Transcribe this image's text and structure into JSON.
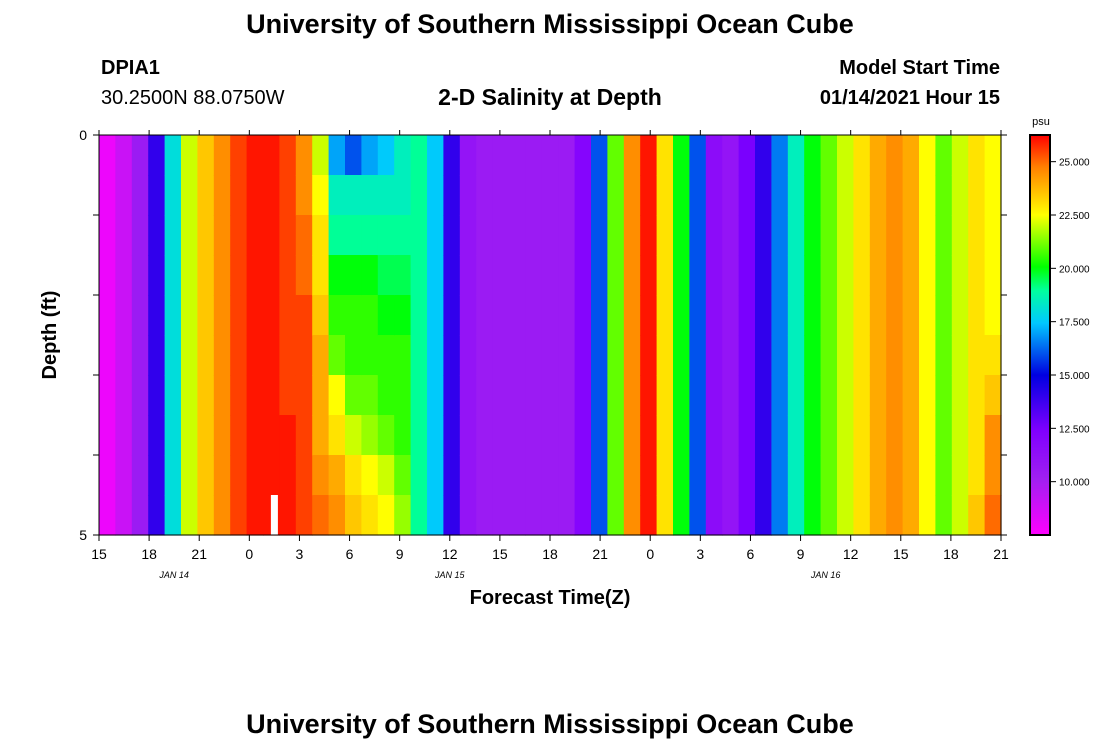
{
  "header": {
    "top_title": "University of Southern Mississippi Ocean Cube",
    "station_id": "DPIA1",
    "coordinates": "30.2500N 88.0750W",
    "plot_title": "2-D Salinity at Depth",
    "model_start_label": "Model Start Time",
    "model_start_value": "01/14/2021 Hour 15",
    "bottom_title": "University of Southern Mississippi Ocean Cube"
  },
  "chart_data": {
    "type": "heatmap",
    "title": "2-D Salinity at Depth",
    "xlabel": "Forecast Time(Z)",
    "ylabel": "Depth (ft)",
    "units": "psu",
    "x_hours_since_start": [
      0,
      54
    ],
    "ylim": [
      0,
      5
    ],
    "y_ticks": [
      "0",
      "5"
    ],
    "x_tick_labels": [
      "15",
      "18",
      "21",
      "0",
      "3",
      "6",
      "9",
      "12",
      "15",
      "18",
      "21",
      "0",
      "3",
      "6",
      "9",
      "12",
      "15",
      "18",
      "21"
    ],
    "date_labels": [
      {
        "text": "JAN 14",
        "hour": 4.5
      },
      {
        "text": "JAN 15",
        "hour": 21
      },
      {
        "text": "JAN 16",
        "hour": 43.5
      }
    ],
    "colorbar": {
      "min": 7.5,
      "max": 26.25,
      "tick_values": [
        10,
        12.5,
        15,
        17.5,
        20,
        22.5,
        25
      ],
      "tick_labels": [
        "10.000",
        "12.500",
        "15.000",
        "17.500",
        "20.000",
        "22.500",
        "25.000"
      ]
    },
    "depth_layers_ft": [
      0.25,
      0.75,
      1.25,
      1.75,
      2.25,
      2.75,
      3.25,
      3.75,
      4.25,
      4.75
    ],
    "columns_salinity_psu": [
      [
        8,
        8,
        8,
        8,
        8,
        8,
        8,
        8,
        8,
        8
      ],
      [
        9,
        9,
        9,
        9,
        9,
        9,
        9,
        9,
        9,
        9
      ],
      [
        10.5,
        10.5,
        10.5,
        10.5,
        10.5,
        10.5,
        10.5,
        10.5,
        10.5,
        10.5
      ],
      [
        14,
        14,
        14,
        14,
        14,
        14,
        14,
        14,
        14,
        14
      ],
      [
        18,
        18,
        18,
        18,
        18,
        18,
        18,
        18,
        18,
        18
      ],
      [
        22,
        22,
        22,
        22,
        22,
        22,
        22,
        22,
        22,
        22
      ],
      [
        23.5,
        23.5,
        23.5,
        23.5,
        23.5,
        23.5,
        23.5,
        23.5,
        23.5,
        23.5
      ],
      [
        24.5,
        24.5,
        24.5,
        24.5,
        24.5,
        24.5,
        24.5,
        24.5,
        24.5,
        24.5
      ],
      [
        25.5,
        25.5,
        25.5,
        25.5,
        25.5,
        25.5,
        25.5,
        25.5,
        25.5,
        25.5
      ],
      [
        26,
        26,
        26,
        26,
        26,
        26,
        26,
        26,
        26,
        26
      ],
      [
        26,
        26,
        26,
        26,
        26,
        26,
        26,
        26,
        26,
        26
      ],
      [
        25.5,
        25.5,
        25.5,
        25.5,
        25.5,
        25.5,
        25.5,
        26,
        26,
        26
      ],
      [
        24.5,
        24.5,
        25,
        25,
        25.5,
        25.5,
        25.5,
        25.5,
        25.5,
        25.5
      ],
      [
        22,
        22.5,
        23,
        23,
        23.5,
        24,
        24,
        24,
        24.5,
        25
      ],
      [
        17,
        18.5,
        19,
        20,
        20.5,
        21,
        22.5,
        23,
        24,
        24.5
      ],
      [
        16,
        18.5,
        19,
        20,
        20.5,
        20.5,
        21,
        22,
        23,
        23.5
      ],
      [
        17,
        18.5,
        19,
        20,
        20.5,
        20.5,
        21,
        21.5,
        22.5,
        23
      ],
      [
        17.5,
        18.5,
        19,
        19.5,
        20,
        20.5,
        20.5,
        21,
        22,
        22.5
      ],
      [
        18.5,
        18.5,
        19,
        19.5,
        20,
        20.5,
        20.5,
        20.5,
        21,
        21.5
      ],
      [
        19,
        19,
        19,
        19,
        19,
        19,
        19,
        19,
        19,
        19
      ],
      [
        17.5,
        17.5,
        17.5,
        17.5,
        17.5,
        17.5,
        17.5,
        17.5,
        17.5,
        17.5
      ],
      [
        14,
        14,
        14,
        14,
        14,
        14,
        14,
        14,
        14,
        14
      ],
      [
        11,
        11,
        11,
        11,
        11,
        11,
        11,
        11,
        11,
        11
      ],
      [
        10.5,
        10.5,
        10.5,
        10.5,
        10.5,
        10.5,
        10.5,
        10.5,
        10.5,
        10.5
      ],
      [
        10.5,
        10.5,
        10.5,
        10.5,
        10.5,
        10.5,
        10.5,
        10.5,
        10.5,
        10.5
      ],
      [
        10.5,
        10.5,
        10.5,
        10.5,
        10.5,
        10.5,
        10.5,
        10.5,
        10.5,
        10.5
      ],
      [
        10.5,
        10.5,
        10.5,
        10.5,
        10.5,
        10.5,
        10.5,
        10.5,
        10.5,
        10.5
      ],
      [
        10.5,
        10.5,
        10.5,
        10.5,
        10.5,
        10.5,
        10.5,
        10.5,
        10.5,
        10.5
      ],
      [
        10.5,
        10.5,
        10.5,
        10.5,
        10.5,
        10.5,
        10.5,
        10.5,
        10.5,
        10.5
      ],
      [
        12,
        12,
        12,
        12,
        12,
        12,
        12,
        12,
        12,
        12
      ],
      [
        16,
        16,
        16,
        16,
        16,
        16,
        16,
        16,
        16,
        16
      ],
      [
        21,
        21,
        21,
        21,
        21,
        21,
        21,
        21,
        21,
        21
      ],
      [
        24.5,
        24.5,
        24.5,
        24.5,
        24.5,
        24.5,
        24.5,
        24.5,
        24.5,
        24.5
      ],
      [
        26,
        26,
        26,
        26,
        26,
        26,
        26,
        26,
        26,
        26
      ],
      [
        23,
        23,
        23,
        23,
        23,
        23,
        23,
        23,
        23,
        23
      ],
      [
        20,
        20,
        20,
        20,
        20,
        20,
        20,
        20,
        20,
        20
      ],
      [
        16,
        16,
        16,
        16,
        16,
        16,
        16,
        16,
        16,
        16
      ],
      [
        11.5,
        11.5,
        11.5,
        11.5,
        11.5,
        11.5,
        11.5,
        11.5,
        11.5,
        11.5
      ],
      [
        11,
        11,
        11,
        11,
        11,
        11,
        11,
        11,
        11,
        11
      ],
      [
        12.5,
        12.5,
        12.5,
        12.5,
        12.5,
        12.5,
        12.5,
        12.5,
        12.5,
        12.5
      ],
      [
        14,
        14,
        14,
        14,
        14,
        14,
        14,
        14,
        14,
        14
      ],
      [
        16.5,
        16.5,
        16.5,
        16.5,
        16.5,
        16.5,
        16.5,
        16.5,
        16.5,
        16.5
      ],
      [
        18.5,
        18.5,
        18.5,
        18.5,
        18.5,
        18.5,
        18.5,
        18.5,
        18.5,
        18.5
      ],
      [
        20,
        20,
        20,
        20,
        20,
        20,
        20,
        20,
        20,
        20
      ],
      [
        21,
        21,
        21,
        21,
        21,
        21,
        21,
        21,
        21,
        21
      ],
      [
        22,
        22,
        22,
        22,
        22,
        22,
        22,
        22,
        22,
        22
      ],
      [
        23,
        23,
        23,
        23,
        23,
        23,
        23,
        23,
        23,
        23
      ],
      [
        24,
        24,
        24,
        24,
        24,
        24,
        24,
        24,
        24,
        24
      ],
      [
        24.5,
        24.5,
        24.5,
        24.5,
        24.5,
        24.5,
        24.5,
        24.5,
        24.5,
        24.5
      ],
      [
        24,
        24,
        24,
        24,
        24,
        24,
        24,
        24,
        24,
        24
      ],
      [
        22.5,
        22.5,
        22.5,
        22.5,
        22.5,
        22.5,
        22.5,
        22.5,
        22.5,
        22.5
      ],
      [
        21,
        21,
        21,
        21,
        21,
        21,
        21,
        21,
        21,
        21
      ],
      [
        22,
        22,
        22,
        22,
        22,
        22,
        22,
        22,
        22,
        22
      ],
      [
        23,
        23,
        23,
        23,
        23,
        23,
        23,
        23,
        23,
        23.5
      ],
      [
        22.5,
        22.5,
        22.5,
        22.5,
        22.5,
        23,
        23.5,
        24.5,
        24.5,
        25
      ]
    ],
    "missing_data_hour": 10.5,
    "colors": {
      "frame": "#000000",
      "missing": "#ffffff"
    }
  }
}
